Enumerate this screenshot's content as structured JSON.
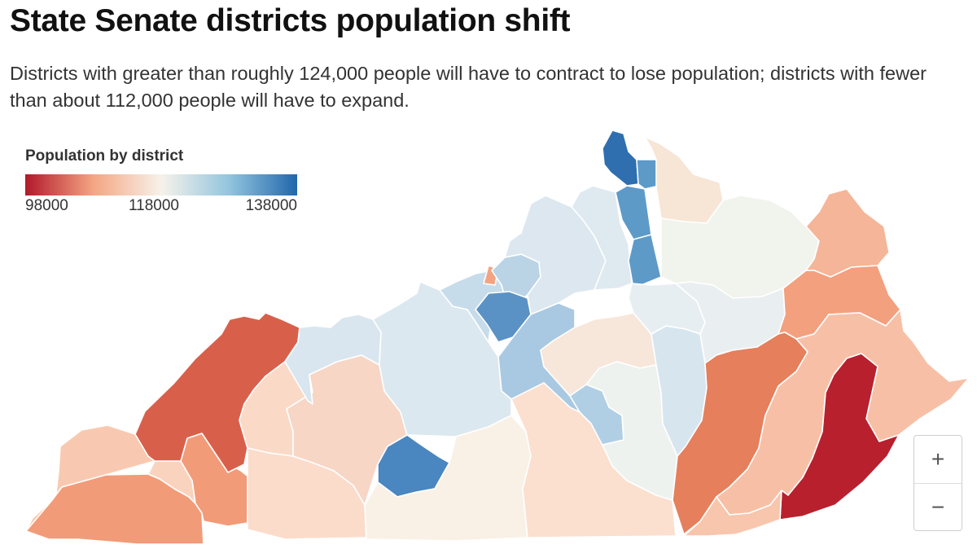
{
  "header": {
    "title": "State Senate districts population shift",
    "subtitle": "Districts with greater than roughly 124,000 people will have to contract to lose population; districts with fewer than about 112,000 people will have to expand."
  },
  "legend": {
    "title": "Population by district",
    "ticks": [
      "98000",
      "118000",
      "138000"
    ],
    "scale_min": 98000,
    "scale_max": 140000,
    "colors": {
      "low": "#b2182b",
      "mid_low": "#f4a582",
      "mid": "#f7f2ea",
      "mid_high": "#92c5de",
      "high": "#2166ac"
    }
  },
  "map": {
    "region_count": 38
  },
  "zoom": {
    "in_icon": "plus-icon",
    "out_icon": "minus-icon",
    "in_label": "+",
    "out_label": "−"
  }
}
